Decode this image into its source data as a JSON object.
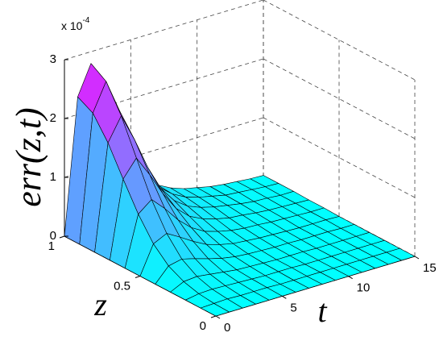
{
  "chart_data": {
    "type": "surface",
    "v_label": "err(z,t)",
    "z_label": "z",
    "t_label": "t",
    "multiplier": {
      "base": "x 10",
      "exponent": "-4"
    },
    "z": [
      0,
      0.1,
      0.2,
      0.3,
      0.4,
      0.5,
      0.6,
      0.7,
      0.8,
      0.9,
      1
    ],
    "t": [
      0,
      1,
      2,
      3,
      4,
      5,
      6,
      7,
      8,
      9,
      10,
      11,
      12,
      13,
      14,
      15
    ],
    "values": [
      [
        0,
        0,
        0,
        0,
        0,
        0,
        0,
        0,
        0,
        0,
        0,
        0,
        0,
        0,
        0,
        0
      ],
      [
        0,
        0.01,
        0.02,
        0.01,
        0.01,
        0.01,
        0,
        0,
        0,
        0,
        0,
        0,
        0,
        0,
        0,
        0
      ],
      [
        0,
        0.04,
        0.05,
        0.04,
        0.03,
        0.02,
        0.01,
        0.01,
        0.01,
        0,
        0,
        0,
        0,
        0,
        0,
        0
      ],
      [
        0,
        0.11,
        0.13,
        0.1,
        0.07,
        0.04,
        0.03,
        0.02,
        0.01,
        0.01,
        0.01,
        0,
        0,
        0,
        0,
        0
      ],
      [
        0,
        0.24,
        0.29,
        0.23,
        0.16,
        0.1,
        0.06,
        0.04,
        0.03,
        0.02,
        0.02,
        0.01,
        0.01,
        0.01,
        0,
        0
      ],
      [
        0,
        0.48,
        0.59,
        0.46,
        0.32,
        0.2,
        0.13,
        0.08,
        0.06,
        0.04,
        0.03,
        0.02,
        0.01,
        0.01,
        0.01,
        0
      ],
      [
        0,
        0.85,
        1.03,
        0.81,
        0.55,
        0.35,
        0.22,
        0.15,
        0.1,
        0.07,
        0.06,
        0.04,
        0.03,
        0.02,
        0.01,
        0.01
      ],
      [
        0,
        1.31,
        1.6,
        1.25,
        0.86,
        0.54,
        0.34,
        0.23,
        0.16,
        0.11,
        0.09,
        0.06,
        0.04,
        0.03,
        0.02,
        0.01
      ],
      [
        0,
        1.79,
        2.18,
        1.71,
        1.17,
        0.74,
        0.47,
        0.31,
        0.22,
        0.16,
        0.12,
        0.08,
        0.05,
        0.04,
        0.02,
        0.02
      ],
      [
        0,
        2.16,
        2.63,
        2.07,
        1.41,
        0.89,
        0.56,
        0.38,
        0.26,
        0.19,
        0.14,
        0.09,
        0.07,
        0.05,
        0.03,
        0.02
      ],
      [
        0,
        2.3,
        2.8,
        2.2,
        1.5,
        0.95,
        0.6,
        0.4,
        0.28,
        0.2,
        0.15,
        0.1,
        0.07,
        0.05,
        0.03,
        0.02
      ]
    ],
    "colormap": [
      "#00ffff",
      "#ff00ff"
    ],
    "zlim": [
      0,
      1
    ],
    "tlim": [
      0,
      15
    ],
    "vlim": [
      0,
      3
    ],
    "zticks": [
      0,
      0.5,
      1
    ],
    "tticks": [
      0,
      5,
      10,
      15
    ],
    "vticks": [
      0,
      1,
      2,
      3
    ],
    "grid": true
  }
}
